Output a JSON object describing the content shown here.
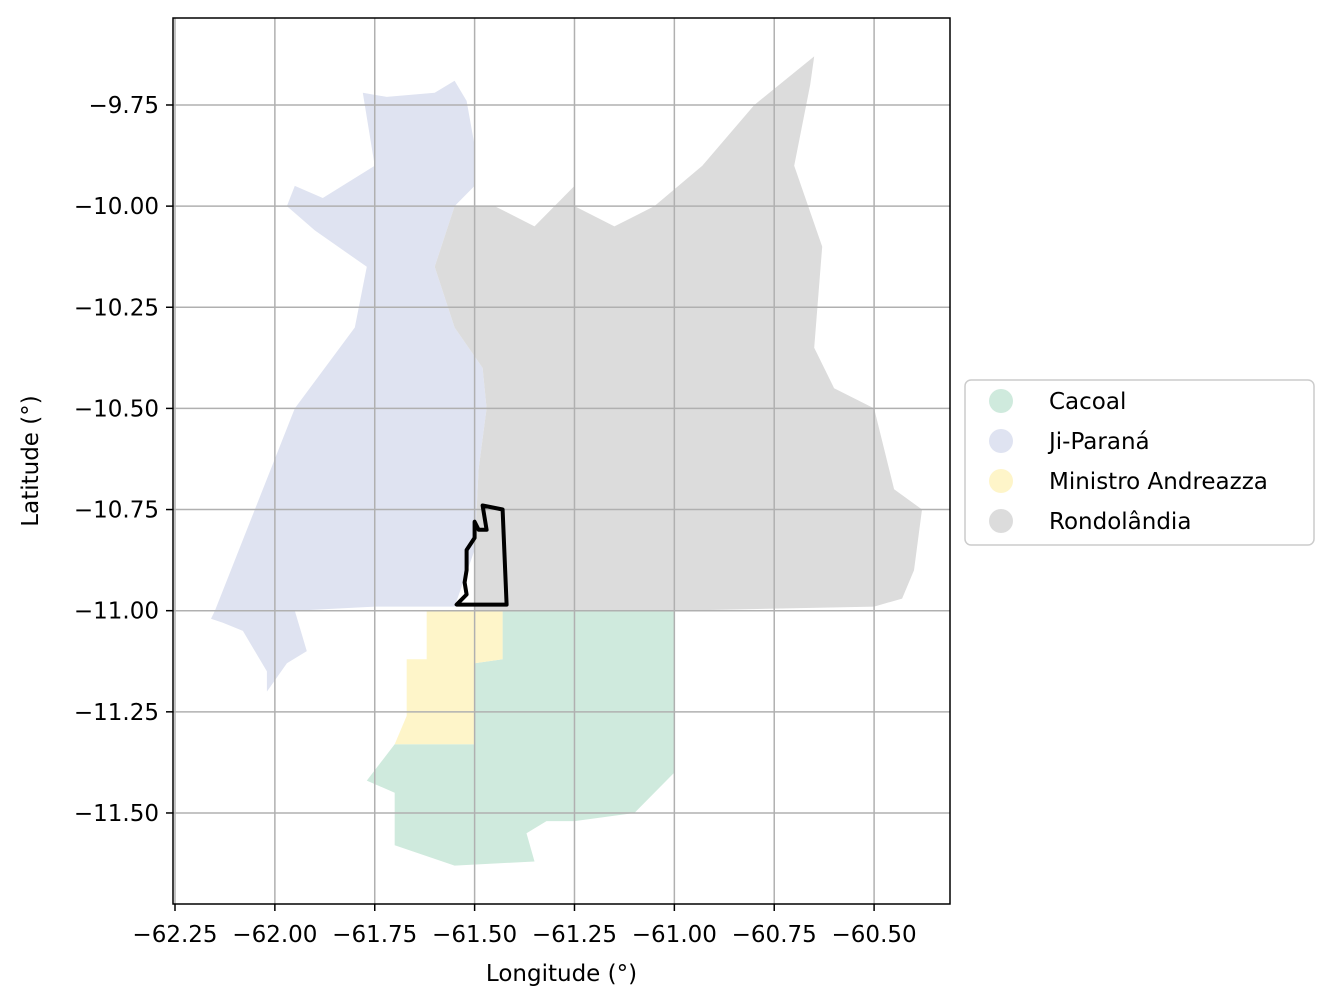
{
  "xlabel": "Longitude (°)",
  "ylabel": "Latitude (°)",
  "x_ticks": [
    {
      "value": -62.25,
      "label": "−62.25"
    },
    {
      "value": -62.0,
      "label": "−62.00"
    },
    {
      "value": -61.75,
      "label": "−61.75"
    },
    {
      "value": -61.5,
      "label": "−61.50"
    },
    {
      "value": -61.25,
      "label": "−61.25"
    },
    {
      "value": -61.0,
      "label": "−61.00"
    },
    {
      "value": -60.75,
      "label": "−60.75"
    },
    {
      "value": -60.5,
      "label": "−60.50"
    }
  ],
  "y_ticks": [
    {
      "value": -9.75,
      "label": "−9.75"
    },
    {
      "value": -10.0,
      "label": "−10.00"
    },
    {
      "value": -10.25,
      "label": "−10.25"
    },
    {
      "value": -10.5,
      "label": "−10.50"
    },
    {
      "value": -10.75,
      "label": "−10.75"
    },
    {
      "value": -11.0,
      "label": "−11.00"
    },
    {
      "value": -11.25,
      "label": "−11.25"
    },
    {
      "value": -11.5,
      "label": "−11.50"
    }
  ],
  "legend": [
    {
      "label": "Cacoal",
      "color": "#cfeadd"
    },
    {
      "label": "Ji-Paraná",
      "color": "#dfe3f1"
    },
    {
      "label": "Ministro Andreazza",
      "color": "#fef5c9"
    },
    {
      "label": "Rondolândia",
      "color": "#dcdcdc"
    }
  ],
  "chart_data": {
    "type": "map",
    "xlim": [
      -62.255,
      -60.31
    ],
    "ylim": [
      -11.725,
      -9.535
    ],
    "grid": true,
    "legend_position": "right",
    "regions": [
      {
        "name": "Ji-Paraná",
        "color": "#dfe3f1",
        "coords": [
          [
            -62.15,
            -11.0
          ],
          [
            -61.95,
            -10.5
          ],
          [
            -61.8,
            -10.3
          ],
          [
            -61.77,
            -10.15
          ],
          [
            -61.9,
            -10.06
          ],
          [
            -61.97,
            -10.0
          ],
          [
            -61.95,
            -9.95
          ],
          [
            -61.88,
            -9.98
          ],
          [
            -61.75,
            -9.9
          ],
          [
            -61.78,
            -9.72
          ],
          [
            -61.72,
            -9.73
          ],
          [
            -61.6,
            -9.72
          ],
          [
            -61.55,
            -9.69
          ],
          [
            -61.52,
            -9.74
          ],
          [
            -61.5,
            -9.85
          ],
          [
            -61.5,
            -9.95
          ],
          [
            -61.55,
            -10.0
          ],
          [
            -61.6,
            -10.15
          ],
          [
            -61.55,
            -10.3
          ],
          [
            -61.48,
            -10.4
          ],
          [
            -61.47,
            -10.5
          ],
          [
            -61.49,
            -10.65
          ],
          [
            -61.5,
            -10.85
          ],
          [
            -61.55,
            -10.99
          ],
          [
            -61.75,
            -10.99
          ],
          [
            -61.95,
            -11.0
          ],
          [
            -61.92,
            -11.1
          ],
          [
            -61.97,
            -11.13
          ],
          [
            -62.02,
            -11.2
          ],
          [
            -62.02,
            -11.15
          ],
          [
            -62.08,
            -11.05
          ],
          [
            -62.13,
            -11.03
          ],
          [
            -62.16,
            -11.02
          ],
          [
            -62.15,
            -11.0
          ]
        ]
      },
      {
        "name": "Rondolândia",
        "color": "#dcdcdc",
        "coords": [
          [
            -61.6,
            -10.15
          ],
          [
            -61.55,
            -10.0
          ],
          [
            -61.45,
            -10.0
          ],
          [
            -61.35,
            -10.05
          ],
          [
            -61.25,
            -9.95
          ],
          [
            -61.25,
            -10.0
          ],
          [
            -61.15,
            -10.05
          ],
          [
            -61.05,
            -10.0
          ],
          [
            -60.93,
            -9.9
          ],
          [
            -60.8,
            -9.75
          ],
          [
            -60.7,
            -9.67
          ],
          [
            -60.65,
            -9.63
          ],
          [
            -60.66,
            -9.7
          ],
          [
            -60.7,
            -9.9
          ],
          [
            -60.63,
            -10.1
          ],
          [
            -60.65,
            -10.35
          ],
          [
            -60.6,
            -10.45
          ],
          [
            -60.5,
            -10.5
          ],
          [
            -60.45,
            -10.7
          ],
          [
            -60.38,
            -10.75
          ],
          [
            -60.4,
            -10.9
          ],
          [
            -60.43,
            -10.97
          ],
          [
            -60.5,
            -10.99
          ],
          [
            -61.0,
            -11.0
          ],
          [
            -61.5,
            -11.0
          ],
          [
            -61.5,
            -10.85
          ],
          [
            -61.49,
            -10.65
          ],
          [
            -61.47,
            -10.5
          ],
          [
            -61.48,
            -10.4
          ],
          [
            -61.55,
            -10.3
          ],
          [
            -61.6,
            -10.15
          ]
        ]
      },
      {
        "name": "Cacoal",
        "color": "#cfeadd",
        "coords": [
          [
            -61.43,
            -11.0
          ],
          [
            -61.0,
            -11.0
          ],
          [
            -61.0,
            -11.4
          ],
          [
            -61.1,
            -11.5
          ],
          [
            -61.25,
            -11.52
          ],
          [
            -61.32,
            -11.52
          ],
          [
            -61.37,
            -11.55
          ],
          [
            -61.35,
            -11.62
          ],
          [
            -61.55,
            -11.63
          ],
          [
            -61.7,
            -11.58
          ],
          [
            -61.7,
            -11.45
          ],
          [
            -61.77,
            -11.42
          ],
          [
            -61.7,
            -11.33
          ],
          [
            -61.5,
            -11.33
          ],
          [
            -61.5,
            -11.13
          ],
          [
            -61.43,
            -11.12
          ],
          [
            -61.43,
            -11.0
          ]
        ]
      },
      {
        "name": "Ministro Andreazza",
        "color": "#fef5c9",
        "coords": [
          [
            -61.62,
            -11.0
          ],
          [
            -61.43,
            -11.0
          ],
          [
            -61.43,
            -11.12
          ],
          [
            -61.5,
            -11.13
          ],
          [
            -61.5,
            -11.33
          ],
          [
            -61.7,
            -11.33
          ],
          [
            -61.67,
            -11.26
          ],
          [
            -61.67,
            -11.12
          ],
          [
            -61.62,
            -11.12
          ],
          [
            -61.62,
            -11.0
          ]
        ]
      }
    ],
    "highlight_outline": {
      "color": "#000000",
      "coords": [
        [
          -61.545,
          -10.985
        ],
        [
          -61.42,
          -10.985
        ],
        [
          -61.43,
          -10.75
        ],
        [
          -61.48,
          -10.74
        ],
        [
          -61.47,
          -10.8
        ],
        [
          -61.49,
          -10.8
        ],
        [
          -61.5,
          -10.78
        ],
        [
          -61.5,
          -10.82
        ],
        [
          -61.52,
          -10.85
        ],
        [
          -61.52,
          -10.9
        ],
        [
          -61.525,
          -10.93
        ],
        [
          -61.52,
          -10.96
        ],
        [
          -61.545,
          -10.985
        ]
      ]
    }
  }
}
